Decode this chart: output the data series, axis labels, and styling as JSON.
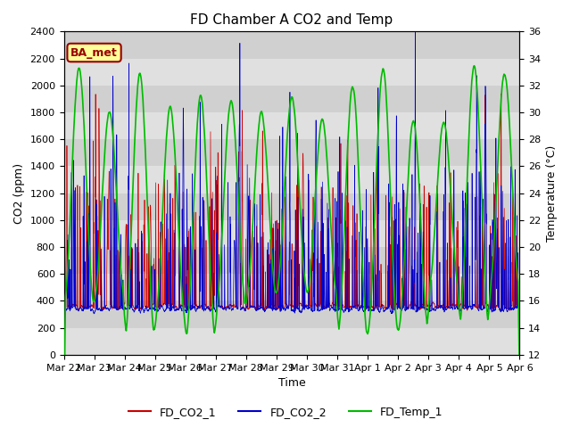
{
  "title": "FD Chamber A CO2 and Temp",
  "xlabel": "Time",
  "ylabel_left": "CO2 (ppm)",
  "ylabel_right": "Temperature (°C)",
  "ylim_left": [
    0,
    2400
  ],
  "ylim_right": [
    12,
    36
  ],
  "yticks_left": [
    0,
    200,
    400,
    600,
    800,
    1000,
    1200,
    1400,
    1600,
    1800,
    2000,
    2200,
    2400
  ],
  "yticks_right": [
    12,
    14,
    16,
    18,
    20,
    22,
    24,
    26,
    28,
    30,
    32,
    34,
    36
  ],
  "plot_bg_color": "#e8e8e8",
  "band_light": "#e0e0e0",
  "band_dark": "#d0d0d0",
  "color_co2_1": "#cc0000",
  "color_co2_2": "#0000cc",
  "color_temp": "#00bb00",
  "legend_labels": [
    "FD_CO2_1",
    "FD_CO2_2",
    "FD_Temp_1"
  ],
  "annotation_text": "BA_met",
  "annotation_color": "#990000",
  "annotation_bg": "#ffff99",
  "n_days": 15,
  "pts_per_day": 288,
  "seed": 7
}
